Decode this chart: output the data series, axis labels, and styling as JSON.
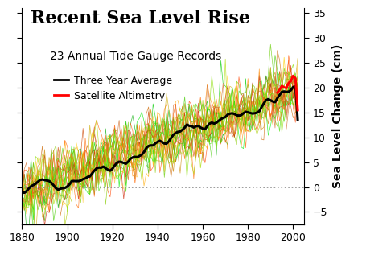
{
  "title": "Recent Sea Level Rise",
  "subtitle": "23 Annual Tide Gauge Records",
  "legend_entries": [
    "Three Year Average",
    "Satellite Altimetry"
  ],
  "ylabel": "Sea Level Change (cm)",
  "xlim": [
    1880,
    2005
  ],
  "ylim": [
    -7.5,
    36
  ],
  "yticks": [
    -5,
    0,
    5,
    10,
    15,
    20,
    25,
    30,
    35
  ],
  "xticks": [
    1880,
    1900,
    1920,
    1940,
    1960,
    1980,
    2000
  ],
  "year_start": 1880,
  "year_end": 2002,
  "satellite_start": 1993,
  "num_gauges": 23,
  "gauge_colors": [
    "#00cc00",
    "#aacc00",
    "#cc6600",
    "#ff4400",
    "#88cc00",
    "#ffcc00",
    "#cc4400",
    "#00aa00",
    "#ffaa00",
    "#cc8800",
    "#44cc00",
    "#ff6600",
    "#ccaa00",
    "#00ee00",
    "#ff8800",
    "#88dd00",
    "#cc2200",
    "#66cc00",
    "#ffcc44",
    "#cc6622",
    "#44dd00",
    "#ff5500",
    "#aadd00"
  ],
  "background_color": "#ffffff",
  "dashed_line_y": 0,
  "title_fontsize": 16,
  "subtitle_fontsize": 10,
  "legend_fontsize": 9,
  "axis_fontsize": 10
}
